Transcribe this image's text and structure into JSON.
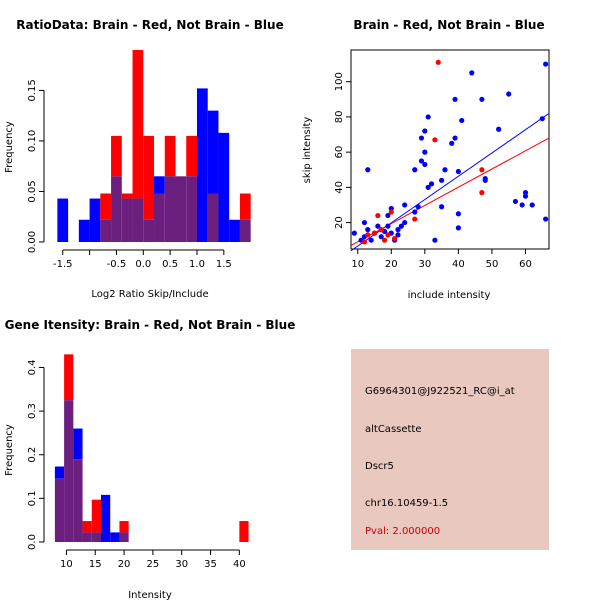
{
  "chart_data": [
    {
      "type": "histogram",
      "id": "ratio",
      "title": "RatioData: Brain - Red, Not Brain - Blue",
      "xlabel": "Log2 Ratio Skip/Include",
      "ylabel": "Frequency",
      "xlim": [
        -1.7,
        1.95
      ],
      "ylim": [
        0,
        0.19
      ],
      "xticks": [
        -1.5,
        -1.0,
        -0.5,
        0.0,
        0.5,
        1.0,
        1.5
      ],
      "xtick_labels": [
        "-1.5",
        "",
        "-0.5",
        "0.0",
        "0.5",
        "1.0",
        "1.5"
      ],
      "yticks": [
        0,
        0.05,
        0.1,
        0.15
      ],
      "ytick_labels": [
        "0.00",
        "0.05",
        "0.10",
        "0.15"
      ],
      "bin_start": -1.6,
      "bin_width": 0.2,
      "colors": {
        "red": "#ff0000",
        "blue": "#0000ff",
        "overlap": "#6b1f7f"
      },
      "series": [
        {
          "name": "Brain",
          "color": "red",
          "values": [
            0,
            0,
            0,
            0,
            0.048,
            0.105,
            0.048,
            0.19,
            0.105,
            0.048,
            0.105,
            0.065,
            0.105,
            0,
            0.048,
            0,
            0,
            0.048
          ]
        },
        {
          "name": "Not Brain",
          "color": "blue",
          "values": [
            0.043,
            0,
            0.022,
            0.043,
            0.022,
            0.065,
            0.043,
            0.043,
            0.022,
            0.065,
            0.065,
            0.065,
            0.065,
            0.152,
            0.13,
            0.108,
            0.022,
            0.022
          ]
        }
      ]
    },
    {
      "type": "scatter",
      "id": "scatter",
      "title": "Brain - Red, Not Brain - Blue",
      "xlabel": "include intensity",
      "ylabel": "skip intensity",
      "xlim": [
        8,
        67
      ],
      "ylim": [
        5,
        118
      ],
      "xticks": [
        10,
        20,
        30,
        40,
        50,
        60
      ],
      "yticks": [
        20,
        40,
        60,
        80,
        100
      ],
      "colors": {
        "Brain": "#ff0000",
        "Not Brain": "#0000ff"
      },
      "series": [
        {
          "name": "Not Brain",
          "color": "Not Brain",
          "points": [
            [
              9,
              14
            ],
            [
              11,
              10
            ],
            [
              12,
              12
            ],
            [
              12,
              20
            ],
            [
              13,
              16
            ],
            [
              13,
              50
            ],
            [
              14,
              10
            ],
            [
              15,
              14
            ],
            [
              16,
              18
            ],
            [
              17,
              12
            ],
            [
              18,
              15
            ],
            [
              19,
              18
            ],
            [
              19,
              24
            ],
            [
              20,
              14
            ],
            [
              20,
              28
            ],
            [
              21,
              10
            ],
            [
              22,
              13
            ],
            [
              22,
              16
            ],
            [
              23,
              18
            ],
            [
              24,
              30
            ],
            [
              24,
              20
            ],
            [
              27,
              26
            ],
            [
              27,
              50
            ],
            [
              28,
              29
            ],
            [
              29,
              55
            ],
            [
              29,
              68
            ],
            [
              30,
              72
            ],
            [
              30,
              60
            ],
            [
              30,
              53
            ],
            [
              31,
              80
            ],
            [
              31,
              40
            ],
            [
              32,
              42
            ],
            [
              33,
              10
            ],
            [
              35,
              29
            ],
            [
              35,
              44
            ],
            [
              36,
              50
            ],
            [
              38,
              65
            ],
            [
              39,
              90
            ],
            [
              39,
              68
            ],
            [
              40,
              49
            ],
            [
              40,
              17
            ],
            [
              40,
              25
            ],
            [
              41,
              78
            ],
            [
              44,
              105
            ],
            [
              47,
              90
            ],
            [
              48,
              44
            ],
            [
              48,
              45
            ],
            [
              52,
              73
            ],
            [
              55,
              93
            ],
            [
              57,
              32
            ],
            [
              59,
              30
            ],
            [
              60,
              35
            ],
            [
              60,
              37
            ],
            [
              62,
              30
            ],
            [
              65,
              79
            ],
            [
              66,
              110
            ],
            [
              66,
              22
            ]
          ]
        },
        {
          "name": "Brain",
          "color": "Brain",
          "points": [
            [
              12,
              9
            ],
            [
              13,
              13
            ],
            [
              15,
              14
            ],
            [
              16,
              24
            ],
            [
              17,
              16
            ],
            [
              18,
              10
            ],
            [
              19,
              13
            ],
            [
              20,
              26
            ],
            [
              21,
              11
            ],
            [
              27,
              22
            ],
            [
              33,
              67
            ],
            [
              34,
              111
            ],
            [
              47,
              50
            ],
            [
              47,
              37
            ]
          ]
        }
      ],
      "fit_lines": [
        {
          "name": "Not Brain fit",
          "color": "Not Brain",
          "x": [
            8,
            67
          ],
          "y": [
            4,
            82
          ]
        },
        {
          "name": "Brain fit",
          "color": "Brain",
          "x": [
            8,
            67
          ],
          "y": [
            7,
            68
          ]
        }
      ]
    },
    {
      "type": "histogram",
      "id": "intensity",
      "title": "Gene Itensity: Brain - Red, Not Brain - Blue",
      "xlabel": "Intensity",
      "ylabel": "Frequency",
      "xlim": [
        7.5,
        41.5
      ],
      "ylim": [
        0,
        0.44
      ],
      "xticks": [
        10,
        15,
        20,
        25,
        30,
        35,
        40
      ],
      "yticks": [
        0,
        0.1,
        0.2,
        0.3,
        0.4
      ],
      "ytick_labels": [
        "0.0",
        "0.1",
        "0.2",
        "0.3",
        "0.4"
      ],
      "bin_start": 8,
      "bin_width": 1.6,
      "colors": {
        "red": "#ff0000",
        "blue": "#0000ff",
        "overlap": "#6b1f7f"
      },
      "series": [
        {
          "name": "Brain",
          "color": "red",
          "values": [
            0.145,
            0.43,
            0.19,
            0.048,
            0.097,
            0,
            0,
            0.048,
            0,
            0,
            0,
            0,
            0,
            0,
            0,
            0,
            0,
            0,
            0,
            0,
            0.048
          ]
        },
        {
          "name": "Not Brain",
          "color": "blue",
          "values": [
            0.173,
            0.325,
            0.26,
            0.022,
            0.022,
            0.108,
            0.022,
            0.022,
            0,
            0,
            0,
            0,
            0,
            0,
            0,
            0,
            0,
            0,
            0,
            0,
            0
          ]
        }
      ]
    }
  ],
  "info": {
    "probe_id": "G6964301@J922521_RC@i_at",
    "event_type": "altCassette",
    "gene": "Dscr5",
    "location": "chr16.10459-1.5",
    "pval": "Pval: 2.000000",
    "panel_color": "#e8c8bf"
  }
}
